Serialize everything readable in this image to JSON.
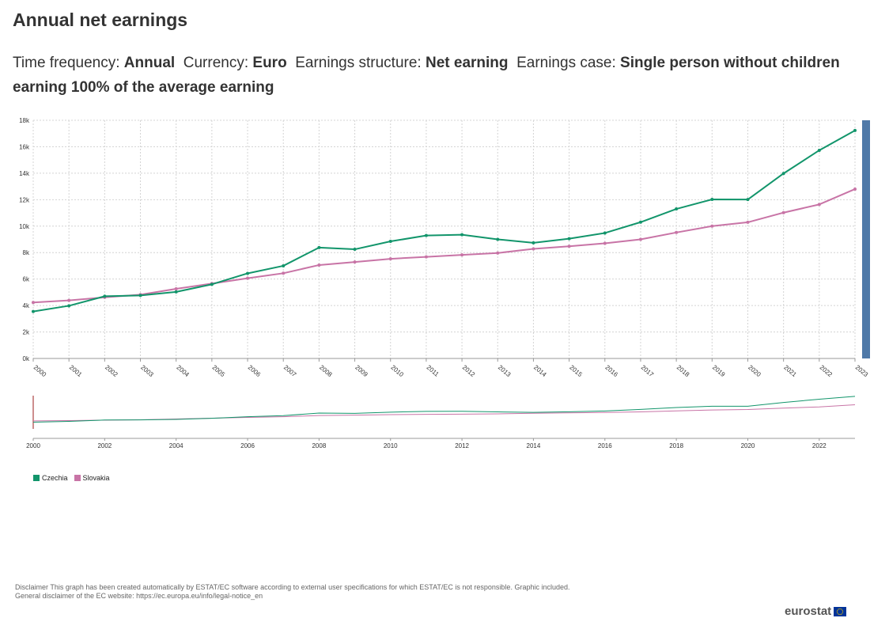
{
  "title": "Annual net earnings",
  "filters": [
    {
      "label": "Time frequency: ",
      "value": "Annual"
    },
    {
      "label": "Currency: ",
      "value": "Euro"
    },
    {
      "label": "Earnings structure: ",
      "value": "Net earning"
    },
    {
      "label": "Earnings case: ",
      "value": "Single person without children earning 100% of the average earning"
    }
  ],
  "colors": {
    "czechia": "#12956b",
    "slovakia": "#c874a6",
    "scroll_handle": "#4f79a8",
    "grid": "#d4d4d4"
  },
  "chart_data": {
    "type": "line",
    "x": [
      2000,
      2001,
      2002,
      2003,
      2004,
      2005,
      2006,
      2007,
      2008,
      2009,
      2010,
      2011,
      2012,
      2013,
      2014,
      2015,
      2016,
      2017,
      2018,
      2019,
      2020,
      2021,
      2022,
      2023
    ],
    "series": [
      {
        "name": "Czechia",
        "values": [
          3550,
          3980,
          4700,
          4760,
          5030,
          5600,
          6430,
          7000,
          8380,
          8250,
          8850,
          9290,
          9350,
          9000,
          8740,
          9050,
          9480,
          10300,
          11300,
          12020,
          12010,
          13980,
          15730,
          17230
        ]
      },
      {
        "name": "Slovakia",
        "values": [
          4230,
          4390,
          4620,
          4820,
          5260,
          5660,
          6060,
          6440,
          7060,
          7290,
          7530,
          7680,
          7830,
          7970,
          8280,
          8480,
          8700,
          9000,
          9520,
          10000,
          10290,
          11020,
          11640,
          12800
        ]
      }
    ],
    "ylim": [
      0,
      18000
    ],
    "yticks": [
      "0k",
      "2k",
      "4k",
      "6k",
      "8k",
      "10k",
      "12k",
      "14k",
      "16k",
      "18k"
    ],
    "xticks": [
      "2000",
      "2001",
      "2002",
      "2003",
      "2004",
      "2005",
      "2006",
      "2007",
      "2008",
      "2009",
      "2010",
      "2011",
      "2012",
      "2013",
      "2014",
      "2015",
      "2016",
      "2017",
      "2018",
      "2019",
      "2020",
      "2021",
      "2022",
      "2023"
    ],
    "navigator_xticks": [
      "2000",
      "2002",
      "2004",
      "2006",
      "2008",
      "2010",
      "2012",
      "2014",
      "2016",
      "2018",
      "2020",
      "2022"
    ],
    "grid": true,
    "legend_position": "bottom-left"
  },
  "legend": [
    {
      "name": "Czechia",
      "color": "#12956b"
    },
    {
      "name": "Slovakia",
      "color": "#c874a6"
    }
  ],
  "disclaimer": {
    "line1": "Disclaimer This graph has been created automatically by ESTAT/EC software according to external user specifications for which ESTAT/EC is not responsible. Graphic included.",
    "line2": "General disclaimer of the EC website: https://ec.europa.eu/info/legal-notice_en"
  },
  "brand": "eurostat"
}
